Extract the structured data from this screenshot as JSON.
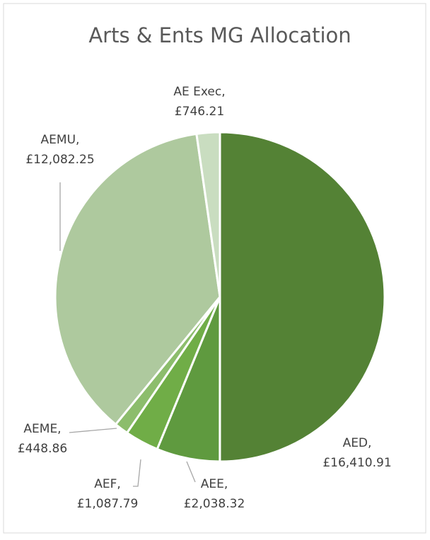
{
  "chart_data": {
    "type": "pie",
    "title": "Arts & Ents MG Allocation",
    "categories": [
      "AED,",
      "AEE,",
      "AEF,",
      "AEME,",
      "AEMU,",
      "AE Exec,"
    ],
    "values": [
      16410.91,
      2038.32,
      1087.79,
      448.86,
      12082.25,
      746.21
    ],
    "value_labels": [
      "£16,410.91",
      "£2,038.32",
      "£1,087.79",
      "£448.86",
      "£12,082.25",
      "£746.21"
    ],
    "colors": [
      "#548235",
      "#5f9a3f",
      "#70ad47",
      "#8cbd6c",
      "#aec99e",
      "#c9ddc0"
    ]
  }
}
